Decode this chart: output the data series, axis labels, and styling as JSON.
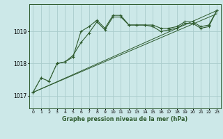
{
  "title": "Graphe pression niveau de la mer (hPa)",
  "bg_color": "#cce8e8",
  "grid_color": "#aacccc",
  "line_color": "#2d5a2d",
  "x_labels": [
    "0",
    "1",
    "2",
    "3",
    "4",
    "5",
    "6",
    "7",
    "8",
    "9",
    "10",
    "11",
    "12",
    "13",
    "14",
    "15",
    "16",
    "17",
    "18",
    "19",
    "20",
    "21",
    "22",
    "23"
  ],
  "ylim": [
    1016.6,
    1019.85
  ],
  "yticks": [
    1017,
    1018,
    1019
  ],
  "series1": [
    1017.1,
    1017.55,
    1017.45,
    1018.0,
    1018.05,
    1018.2,
    1019.0,
    1019.15,
    1019.35,
    1019.1,
    1019.5,
    1019.5,
    1019.2,
    1019.2,
    1019.2,
    1019.2,
    1019.1,
    1019.1,
    1019.15,
    1019.3,
    1019.3,
    1019.15,
    1019.2,
    1019.65
  ],
  "series2": [
    1017.1,
    1017.55,
    1017.45,
    1018.0,
    1018.05,
    1018.25,
    1018.65,
    1018.95,
    1019.3,
    1019.05,
    1019.45,
    1019.45,
    1019.2,
    1019.2,
    1019.2,
    1019.15,
    1019.0,
    1019.05,
    1019.1,
    1019.25,
    1019.25,
    1019.1,
    1019.15,
    1019.65
  ],
  "trend1": [
    1017.1,
    1019.65
  ],
  "trend2": [
    1017.1,
    1019.55
  ]
}
